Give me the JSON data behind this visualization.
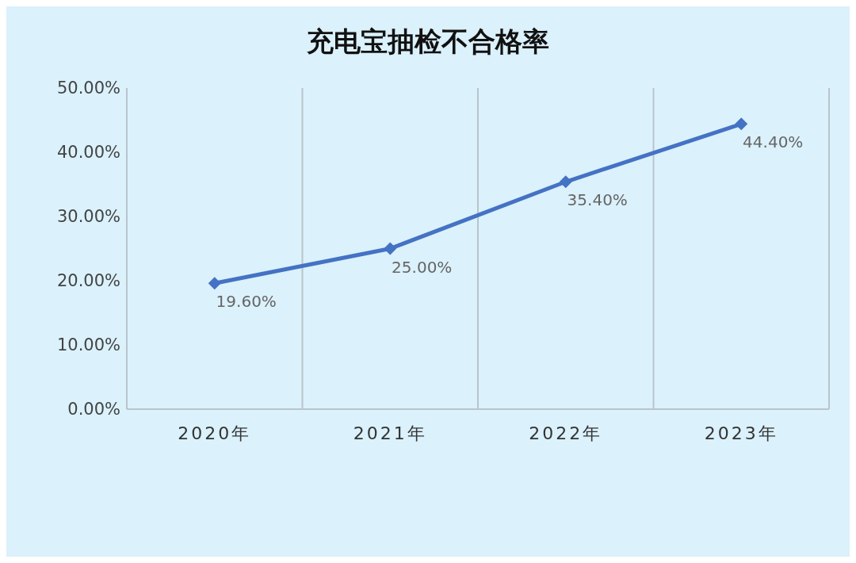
{
  "chart_data": {
    "type": "line",
    "title": "充电宝抽检不合格率",
    "categories": [
      "2020年",
      "2021年",
      "2022年",
      "2023年"
    ],
    "series": [
      {
        "color": "#4472c4",
        "values": [
          19.6,
          25.0,
          35.4,
          44.4
        ],
        "value_labels": [
          "19.60%",
          "25.00%",
          "35.40%",
          "44.40%"
        ]
      }
    ],
    "ylim": [
      0,
      50
    ],
    "yticks": [
      {
        "value": 0,
        "label": "0.00%"
      },
      {
        "value": 10,
        "label": "10.00%"
      },
      {
        "value": 20,
        "label": "20.00%"
      },
      {
        "value": 30,
        "label": "30.00%"
      },
      {
        "value": 40,
        "label": "40.00%"
      },
      {
        "value": 50,
        "label": "50.00%"
      }
    ],
    "grid": "x",
    "marker": "diamond"
  }
}
